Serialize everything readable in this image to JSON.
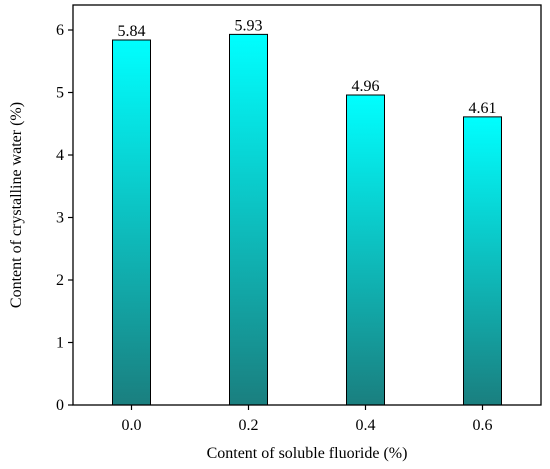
{
  "chart_data": {
    "type": "bar",
    "categories": [
      "0.0",
      "0.2",
      "0.4",
      "0.6"
    ],
    "values": [
      5.84,
      5.93,
      4.96,
      4.61
    ],
    "value_labels": [
      "5.84",
      "5.93",
      "4.96",
      "4.61"
    ],
    "title": "",
    "xlabel": "Content of soluble fluoride (%)",
    "ylabel": "Content of crystalline water (%)",
    "ylim": [
      0,
      6.4
    ],
    "yticks": [
      "0",
      "1",
      "2",
      "3",
      "4",
      "5",
      "6"
    ],
    "grid": false,
    "colors": {
      "bar_top": "#00ffff",
      "bar_bottom": "#1a7f7f",
      "axis": "#000000"
    }
  }
}
